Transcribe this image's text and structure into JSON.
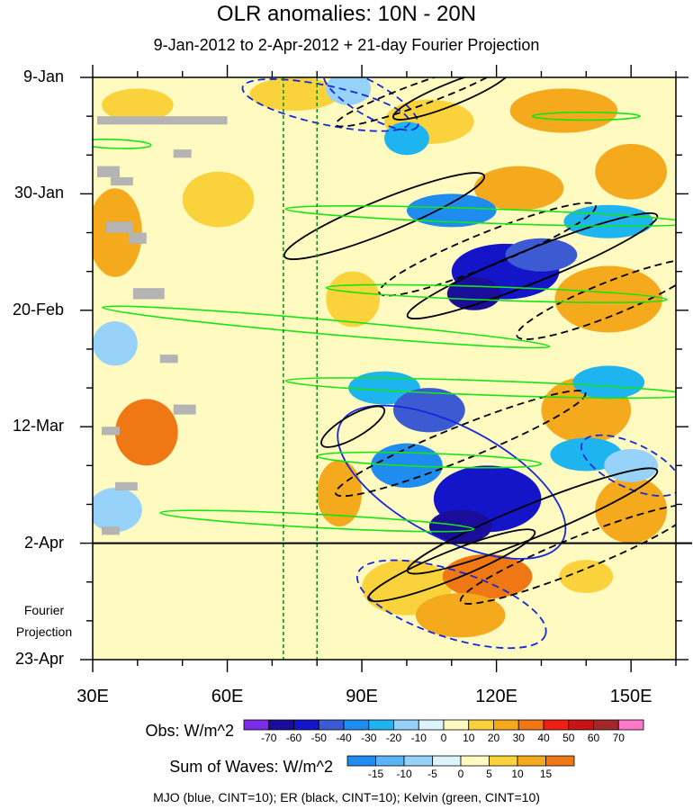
{
  "chart_data": {
    "type": "heatmap",
    "title": "OLR anomalies: 10N - 20N",
    "subtitle": "9-Jan-2012 to 2-Apr-2012 + 21-day Fourier Projection",
    "x_ticks": [
      {
        "label": "30E",
        "value": 30
      },
      {
        "label": "60E",
        "value": 60
      },
      {
        "label": "90E",
        "value": 90
      },
      {
        "label": "120E",
        "value": 120
      },
      {
        "label": "150E",
        "value": 150
      }
    ],
    "xlim": [
      30,
      160
    ],
    "y_ticks": [
      {
        "label": "9-Jan",
        "day": 0
      },
      {
        "label": "30-Jan",
        "day": 21
      },
      {
        "label": "20-Feb",
        "day": 42
      },
      {
        "label": "12-Mar",
        "day": 63
      },
      {
        "label": "2-Apr",
        "day": 84
      },
      {
        "label": "23-Apr",
        "day": 105
      }
    ],
    "ylim_days": [
      0,
      105
    ],
    "projection_label_line1": "Fourier",
    "projection_label_line2": "Projection",
    "projection_start_day": 84,
    "reference_lines_lon": [
      72.5,
      80
    ],
    "obs_colorbar": {
      "label": "Obs: W/m^2",
      "levels": [
        "-70",
        "-60",
        "-50",
        "-40",
        "-30",
        "-20",
        "-10",
        "0",
        "10",
        "20",
        "30",
        "40",
        "50",
        "60",
        "70"
      ],
      "colors": [
        "#7b2be6",
        "#1a0d9a",
        "#1414c8",
        "#3c5ad2",
        "#1f8cf0",
        "#1eb4f0",
        "#96d2fa",
        "#dcf5fc",
        "#fffac0",
        "#fad23c",
        "#f5aa1e",
        "#f07814",
        "#f01e14",
        "#c81414",
        "#a02828",
        "#ff78c8"
      ]
    },
    "waves_colorbar": {
      "label": "Sum of Waves: W/m^2",
      "levels": [
        "-15",
        "-10",
        "-5",
        "0",
        "5",
        "10",
        "15"
      ],
      "colors": [
        "#1f8cf0",
        "#5ab4f5",
        "#96d2fa",
        "#dcf5fc",
        "#fffac0",
        "#fad23c",
        "#f5aa1e",
        "#f07814"
      ]
    },
    "footer": "MJO (blue, CINT=10); ER (black, CINT=10); Kelvin (green, CINT=10)",
    "blobs": [
      {
        "lon": 40,
        "day": 5,
        "rx": 8,
        "ry": 3,
        "v": 15
      },
      {
        "lon": 75,
        "day": 3,
        "rx": 10,
        "ry": 3,
        "v": 15
      },
      {
        "lon": 105,
        "day": 8,
        "rx": 10,
        "ry": 4,
        "v": 15
      },
      {
        "lon": 135,
        "day": 6,
        "rx": 12,
        "ry": 4,
        "v": 20
      },
      {
        "lon": 35,
        "day": 28,
        "rx": 6,
        "ry": 8,
        "v": 20
      },
      {
        "lon": 58,
        "day": 22,
        "rx": 8,
        "ry": 5,
        "v": 15
      },
      {
        "lon": 125,
        "day": 20,
        "rx": 10,
        "ry": 4,
        "v": 20
      },
      {
        "lon": 150,
        "day": 17,
        "rx": 8,
        "ry": 5,
        "v": 20
      },
      {
        "lon": 145,
        "day": 40,
        "rx": 12,
        "ry": 6,
        "v": 20
      },
      {
        "lon": 42,
        "day": 64,
        "rx": 7,
        "ry": 6,
        "v": 30
      },
      {
        "lon": 88,
        "day": 40,
        "rx": 6,
        "ry": 5,
        "v": 15
      },
      {
        "lon": 140,
        "day": 60,
        "rx": 10,
        "ry": 6,
        "v": 20
      },
      {
        "lon": 85,
        "day": 75,
        "rx": 5,
        "ry": 6,
        "v": 20
      },
      {
        "lon": 150,
        "day": 78,
        "rx": 8,
        "ry": 6,
        "v": 20
      },
      {
        "lon": 100,
        "day": 92,
        "rx": 10,
        "ry": 5,
        "v": 15
      },
      {
        "lon": 118,
        "day": 90,
        "rx": 10,
        "ry": 4,
        "v": 35
      },
      {
        "lon": 112,
        "day": 97,
        "rx": 10,
        "ry": 4,
        "v": 20
      },
      {
        "lon": 140,
        "day": 90,
        "rx": 6,
        "ry": 3,
        "v": 15
      },
      {
        "lon": 70,
        "day": 92,
        "rx": 8,
        "ry": 3,
        "v": 5
      },
      {
        "lon": 100,
        "day": 11,
        "rx": 5,
        "ry": 3,
        "v": -30
      },
      {
        "lon": 87,
        "day": 2,
        "rx": 5,
        "ry": 3,
        "v": -20
      },
      {
        "lon": 110,
        "day": 24,
        "rx": 10,
        "ry": 3,
        "v": -40
      },
      {
        "lon": 145,
        "day": 26,
        "rx": 10,
        "ry": 3,
        "v": -30
      },
      {
        "lon": 122,
        "day": 35,
        "rx": 12,
        "ry": 5,
        "v": -60
      },
      {
        "lon": 115,
        "day": 39,
        "rx": 6,
        "ry": 3,
        "v": -70
      },
      {
        "lon": 130,
        "day": 32,
        "rx": 8,
        "ry": 3,
        "v": -50
      },
      {
        "lon": 35,
        "day": 48,
        "rx": 5,
        "ry": 4,
        "v": -20
      },
      {
        "lon": 95,
        "day": 56,
        "rx": 8,
        "ry": 3,
        "v": -30
      },
      {
        "lon": 105,
        "day": 60,
        "rx": 8,
        "ry": 4,
        "v": -50
      },
      {
        "lon": 145,
        "day": 55,
        "rx": 8,
        "ry": 3,
        "v": -30
      },
      {
        "lon": 118,
        "day": 76,
        "rx": 12,
        "ry": 6,
        "v": -60
      },
      {
        "lon": 112,
        "day": 81,
        "rx": 7,
        "ry": 3,
        "v": -70
      },
      {
        "lon": 100,
        "day": 70,
        "rx": 8,
        "ry": 4,
        "v": -40
      },
      {
        "lon": 35,
        "day": 78,
        "rx": 6,
        "ry": 4,
        "v": -20
      },
      {
        "lon": 140,
        "day": 68,
        "rx": 8,
        "ry": 3,
        "v": -30
      },
      {
        "lon": 150,
        "day": 70,
        "rx": 6,
        "ry": 3,
        "v": -20
      }
    ],
    "missing_cells": [
      {
        "lon": 31,
        "day": 7,
        "w": 29,
        "h": 1.5
      },
      {
        "lon": 31,
        "day": 16,
        "w": 5,
        "h": 2
      },
      {
        "lon": 34,
        "day": 18,
        "w": 5,
        "h": 1.5
      },
      {
        "lon": 48,
        "day": 13,
        "w": 4,
        "h": 1.5
      },
      {
        "lon": 33,
        "day": 26,
        "w": 6,
        "h": 2
      },
      {
        "lon": 38,
        "day": 28,
        "w": 4,
        "h": 2
      },
      {
        "lon": 39,
        "day": 38,
        "w": 7,
        "h": 2
      },
      {
        "lon": 45,
        "day": 50,
        "w": 4,
        "h": 1.5
      },
      {
        "lon": 48,
        "day": 59,
        "w": 5,
        "h": 1.8
      },
      {
        "lon": 32,
        "day": 63,
        "w": 4,
        "h": 1.5
      },
      {
        "lon": 35,
        "day": 73,
        "w": 5,
        "h": 1.5
      },
      {
        "lon": 32,
        "day": 81,
        "w": 4,
        "h": 1.5
      }
    ],
    "mjo_contours": [
      {
        "lon": 82,
        "day": 5,
        "rx": 19,
        "ry": 3.5,
        "rot": 12,
        "dash": true
      },
      {
        "lon": 92,
        "day": 4,
        "rx": 12,
        "ry": 3,
        "rot": 30,
        "dash": true
      },
      {
        "lon": 110,
        "day": 73,
        "rx": 28,
        "ry": 10,
        "rot": 28,
        "dash": false
      },
      {
        "lon": 150,
        "day": 70,
        "rx": 12,
        "ry": 4,
        "rot": 25,
        "dash": true
      },
      {
        "lon": 110,
        "day": 95,
        "rx": 22,
        "ry": 6,
        "rot": 18,
        "dash": true
      }
    ],
    "er_contours": [
      {
        "lon": 103,
        "day": 3,
        "rx": 20,
        "ry": 2,
        "rot": -20,
        "dash": true
      },
      {
        "lon": 110,
        "day": 3,
        "rx": 14,
        "ry": 2,
        "rot": -22,
        "dash": false
      },
      {
        "lon": 95,
        "day": 25,
        "rx": 24,
        "ry": 3,
        "rot": -22,
        "dash": false
      },
      {
        "lon": 118,
        "day": 31,
        "rx": 26,
        "ry": 3,
        "rot": -22,
        "dash": true
      },
      {
        "lon": 128,
        "day": 34,
        "rx": 30,
        "ry": 3,
        "rot": -22,
        "dash": false
      },
      {
        "lon": 145,
        "day": 40,
        "rx": 22,
        "ry": 3,
        "rot": -22,
        "dash": true
      },
      {
        "lon": 88,
        "day": 63,
        "rx": 8,
        "ry": 2,
        "rot": -30,
        "dash": false
      },
      {
        "lon": 112,
        "day": 66,
        "rx": 30,
        "ry": 3,
        "rot": -22,
        "dash": true
      },
      {
        "lon": 128,
        "day": 80,
        "rx": 30,
        "ry": 3,
        "rot": -22,
        "dash": false
      },
      {
        "lon": 138,
        "day": 86,
        "rx": 28,
        "ry": 3,
        "rot": -22,
        "dash": true
      },
      {
        "lon": 110,
        "day": 88,
        "rx": 20,
        "ry": 2.5,
        "rot": -22,
        "dash": false
      }
    ],
    "kelvin_contours": [
      {
        "lon": 118,
        "day": 25,
        "rx": 45,
        "ry": 1.3,
        "rot": 2,
        "dash": false
      },
      {
        "lon": 82,
        "day": 45,
        "rx": 50,
        "ry": 1.3,
        "rot": 5,
        "dash": false
      },
      {
        "lon": 120,
        "day": 39,
        "rx": 38,
        "ry": 1.2,
        "rot": 2,
        "dash": false
      },
      {
        "lon": 118,
        "day": 56,
        "rx": 45,
        "ry": 1.3,
        "rot": 2,
        "dash": false
      },
      {
        "lon": 105,
        "day": 69,
        "rx": 25,
        "ry": 1.2,
        "rot": 2,
        "dash": false
      },
      {
        "lon": 80,
        "day": 80,
        "rx": 35,
        "ry": 1.2,
        "rot": 3,
        "dash": false
      },
      {
        "lon": 35,
        "day": 12,
        "rx": 8,
        "ry": 0.8,
        "rot": 2,
        "dash": false
      },
      {
        "lon": 140,
        "day": 7,
        "rx": 12,
        "ry": 0.7,
        "rot": 0,
        "dash": false
      }
    ]
  }
}
